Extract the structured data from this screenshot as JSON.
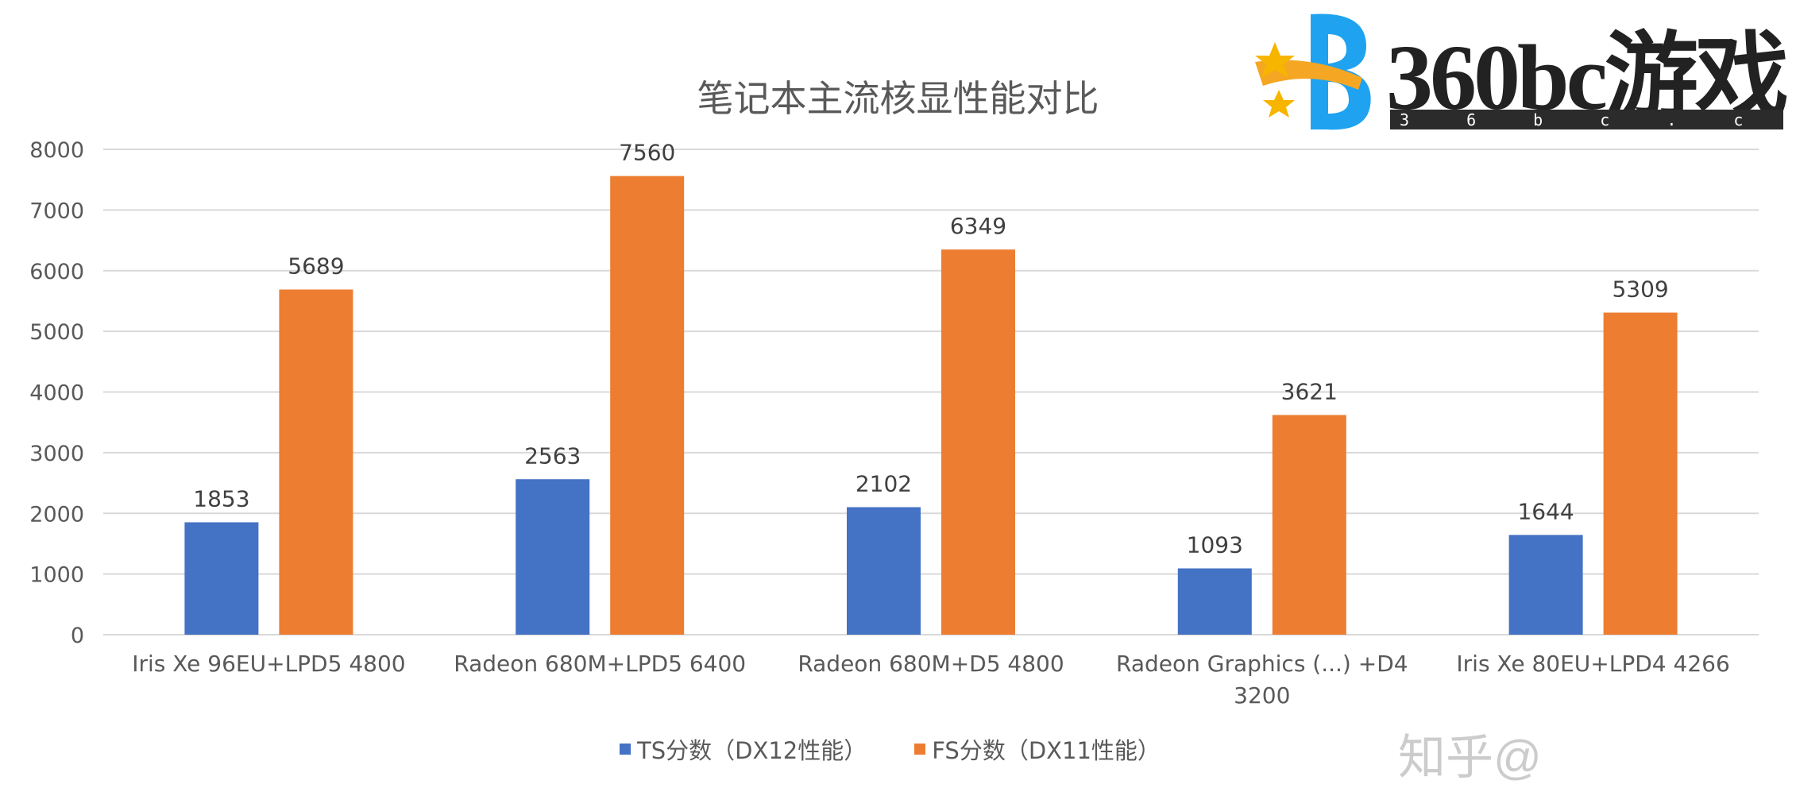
{
  "chart_data": {
    "type": "bar",
    "title": "笔记本主流核显性能对比",
    "categories": [
      "Iris Xe 96EU+LPD5 4800",
      "Radeon 680M+LPD5 6400",
      "Radeon 680M+D5 4800",
      "Radeon Graphics (...) +D4 3200",
      "Iris Xe 80EU+LPD4 4266"
    ],
    "series": [
      {
        "name": "TS分数（DX12性能）",
        "color": "#4472C4",
        "values": [
          1853,
          2563,
          2102,
          1093,
          1644
        ]
      },
      {
        "name": "FS分数（DX11性能）",
        "color": "#ED7D31",
        "values": [
          5689,
          7560,
          6349,
          3621,
          5309
        ]
      }
    ],
    "ylim": [
      0,
      8000
    ],
    "yticks": [
      0,
      1000,
      2000,
      3000,
      4000,
      5000,
      6000,
      7000,
      8000
    ],
    "grid": true,
    "legend": "bottom",
    "data_labels": true
  },
  "watermark": {
    "brand": "360bc游戏",
    "url": "3 6 b c . c c",
    "faint": "知乎@"
  }
}
